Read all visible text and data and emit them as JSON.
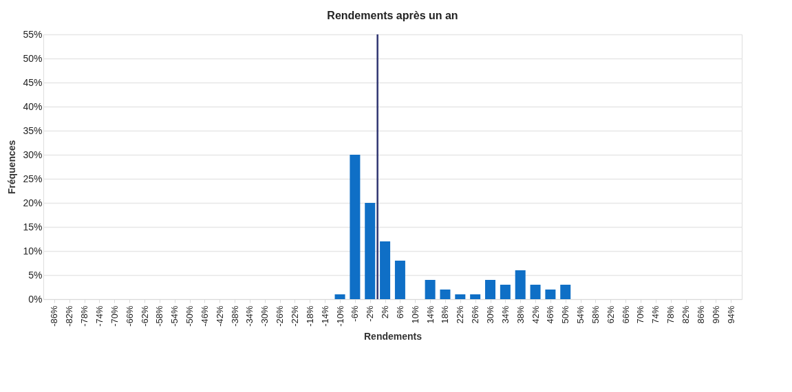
{
  "chart_data": {
    "type": "bar",
    "title": "Rendements après un an",
    "xlabel": "Rendements",
    "ylabel": "Fréquences",
    "x": [
      -86,
      -82,
      -78,
      -74,
      -70,
      -66,
      -62,
      -58,
      -54,
      -50,
      -46,
      -42,
      -38,
      -34,
      -30,
      -26,
      -22,
      -18,
      -14,
      -10,
      -6,
      -2,
      2,
      6,
      10,
      14,
      18,
      22,
      26,
      30,
      34,
      38,
      42,
      46,
      50,
      54,
      58,
      62,
      66,
      70,
      74,
      78,
      82,
      86,
      90,
      94
    ],
    "values": [
      0,
      0,
      0,
      0,
      0,
      0,
      0,
      0,
      0,
      0,
      0,
      0,
      0,
      0,
      0,
      0,
      0,
      0,
      0,
      1,
      30,
      20,
      12,
      8,
      0,
      4,
      2,
      1,
      1,
      4,
      3,
      6,
      3,
      2,
      3,
      0,
      0,
      0,
      0,
      0,
      0,
      0,
      0,
      0,
      0,
      0
    ],
    "color": "#0f6fc6",
    "xlim": [
      -88,
      96
    ],
    "xticks": [
      {
        "value": -86,
        "label": "-86%"
      },
      {
        "value": -82,
        "label": "-82%"
      },
      {
        "value": -78,
        "label": "-78%"
      },
      {
        "value": -74,
        "label": "-74%"
      },
      {
        "value": -70,
        "label": "-70%"
      },
      {
        "value": -66,
        "label": "-66%"
      },
      {
        "value": -62,
        "label": "-62%"
      },
      {
        "value": -58,
        "label": "-58%"
      },
      {
        "value": -54,
        "label": "-54%"
      },
      {
        "value": -50,
        "label": "-50%"
      },
      {
        "value": -46,
        "label": "-46%"
      },
      {
        "value": -42,
        "label": "-42%"
      },
      {
        "value": -38,
        "label": "-38%"
      },
      {
        "value": -34,
        "label": "-34%"
      },
      {
        "value": -30,
        "label": "-30%"
      },
      {
        "value": -26,
        "label": "-26%"
      },
      {
        "value": -22,
        "label": "-22%"
      },
      {
        "value": -18,
        "label": "-18%"
      },
      {
        "value": -14,
        "label": "-14%"
      },
      {
        "value": -10,
        "label": "-10%"
      },
      {
        "value": -6,
        "label": "-6%"
      },
      {
        "value": -2,
        "label": "-2%"
      },
      {
        "value": 2,
        "label": "2%"
      },
      {
        "value": 6,
        "label": "6%"
      },
      {
        "value": 10,
        "label": "10%"
      },
      {
        "value": 14,
        "label": "14%"
      },
      {
        "value": 18,
        "label": "18%"
      },
      {
        "value": 22,
        "label": "22%"
      },
      {
        "value": 26,
        "label": "26%"
      },
      {
        "value": 30,
        "label": "30%"
      },
      {
        "value": 34,
        "label": "34%"
      },
      {
        "value": 38,
        "label": "38%"
      },
      {
        "value": 42,
        "label": "42%"
      },
      {
        "value": 46,
        "label": "46%"
      },
      {
        "value": 50,
        "label": "50%"
      },
      {
        "value": 54,
        "label": "54%"
      },
      {
        "value": 58,
        "label": "58%"
      },
      {
        "value": 62,
        "label": "62%"
      },
      {
        "value": 66,
        "label": "66%"
      },
      {
        "value": 70,
        "label": "70%"
      },
      {
        "value": 74,
        "label": "74%"
      },
      {
        "value": 78,
        "label": "78%"
      },
      {
        "value": 82,
        "label": "82%"
      },
      {
        "value": 86,
        "label": "86%"
      },
      {
        "value": 90,
        "label": "90%"
      },
      {
        "value": 94,
        "label": "94%"
      }
    ],
    "ylim": [
      0,
      55
    ],
    "yticks": [
      {
        "value": 0,
        "label": "0%"
      },
      {
        "value": 5,
        "label": "5%"
      },
      {
        "value": 10,
        "label": "10%"
      },
      {
        "value": 15,
        "label": "15%"
      },
      {
        "value": 20,
        "label": "20%"
      },
      {
        "value": 25,
        "label": "25%"
      },
      {
        "value": 30,
        "label": "30%"
      },
      {
        "value": 35,
        "label": "35%"
      },
      {
        "value": 40,
        "label": "40%"
      },
      {
        "value": 45,
        "label": "45%"
      },
      {
        "value": 50,
        "label": "50%"
      },
      {
        "value": 55,
        "label": "55%"
      }
    ],
    "grid": "y",
    "ref_lines": [
      {
        "axis": "x",
        "value": 0,
        "color": "#2e3470"
      }
    ]
  }
}
